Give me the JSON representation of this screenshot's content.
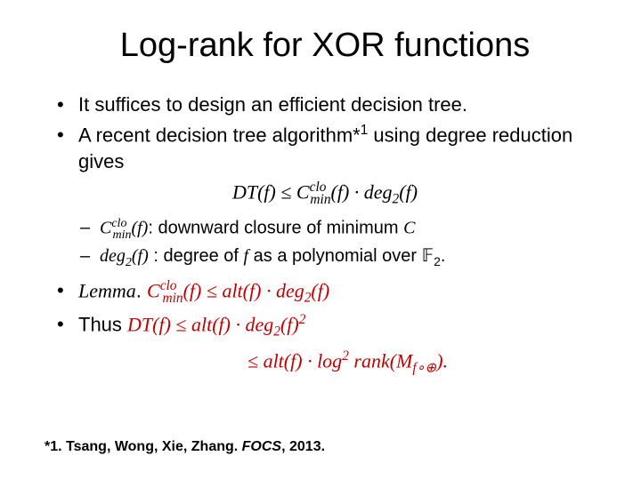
{
  "title": "Log-rank for XOR functions",
  "bullets": {
    "b1": "It suffices to design an efficient decision tree.",
    "b2_pre": "A recent decision tree algorithm*",
    "b2_sup": "1",
    "b2_post": " using degree reduction gives"
  },
  "formula1": {
    "lhs": "DT(f) ≤ C",
    "sub1": "min",
    "sup1": "clo",
    "mid": "(f) · deg",
    "sub2": "2",
    "rhs": "(f)"
  },
  "sublist": {
    "s1_sym": "C",
    "s1_sub": "min",
    "s1_sup": "clo",
    "s1_arg": "(f)",
    "s1_desc": ": downward closure of minimum ",
    "s1_trail": "C",
    "s2_sym": "deg",
    "s2_sub": "2",
    "s2_arg": "(f)",
    "s2_desc": " : degree of ",
    "s2_f": "f",
    "s2_desc2": " as a polynomial over ",
    "s2_field": "𝔽",
    "s2_field_sub": "2",
    "s2_period": "."
  },
  "lemma": {
    "label": "Lemma",
    "period": ". ",
    "lhs_C": "C",
    "lhs_sub": "min",
    "lhs_sup": "clo",
    "lhs_arg": "(f) ≤ alt(f) · deg",
    "deg_sub": "2",
    "rhs": "(f)"
  },
  "thus": {
    "label": "Thus ",
    "line1_lhs": "DT(f) ≤ alt(f) · deg",
    "line1_sub": "2",
    "line1_mid": "(f)",
    "line1_sup": "2",
    "line2_pre": "≤ alt(f) · log",
    "line2_sup": "2",
    "line2_mid": " rank(M",
    "line2_sub": "f∘⊕",
    "line2_end": ")."
  },
  "footnote": {
    "marker": "*1. ",
    "authors": "Tsang, Wong, Xie, Zhang. ",
    "venue": "FOCS",
    "year": ", 2013."
  },
  "colors": {
    "red": "#c00000",
    "text": "#000000",
    "background": "#ffffff"
  }
}
